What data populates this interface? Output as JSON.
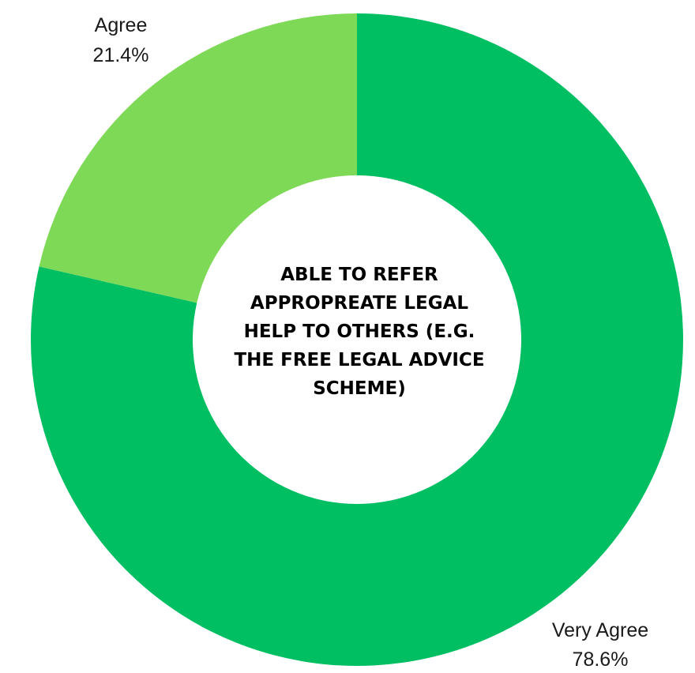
{
  "chart_data": {
    "type": "pie",
    "variant": "donut",
    "title": "ABLE TO REFER\nAPPROPREATE LEGAL\nHELP TO OTHERS (E.G.\nTHE FREE LEGAL ADVICE\nSCHEME)",
    "slices": [
      {
        "name": "Very Agree",
        "label": "Very Agree",
        "value": 78.6,
        "value_label": "78.6%",
        "color": "#00bf63"
      },
      {
        "name": "Agree",
        "label": "Agree",
        "value": 21.4,
        "value_label": "21.4%",
        "color": "#7ed957"
      }
    ],
    "start_angle": "top",
    "direction": "clockwise",
    "legend": "none"
  }
}
